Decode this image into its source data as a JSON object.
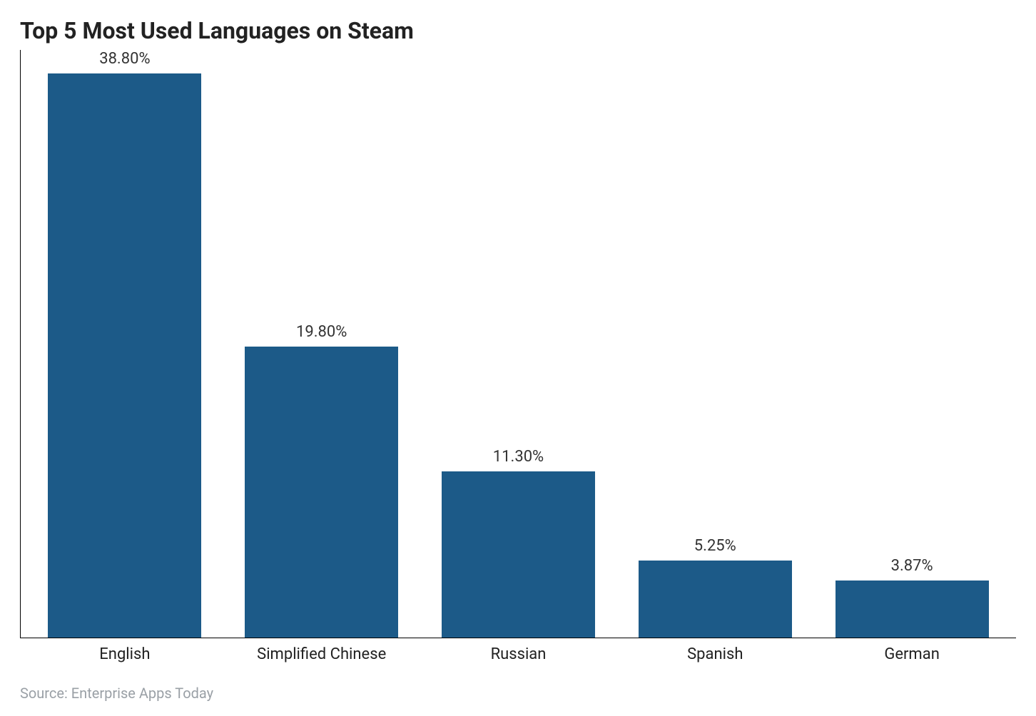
{
  "chart": {
    "type": "bar",
    "title": "Top 5 Most Used Languages on Steam",
    "title_fontsize": 32,
    "title_fontweight": 700,
    "title_color": "#222222",
    "categories": [
      "English",
      "Simplified Chinese",
      "Russian",
      "Spanish",
      "German"
    ],
    "values": [
      38.8,
      19.8,
      11.3,
      5.25,
      3.87
    ],
    "value_labels": [
      "38.80%",
      "19.80%",
      "11.30%",
      "5.25%",
      "3.87%"
    ],
    "bar_color": "#1c5a88",
    "bar_width": 0.78,
    "ylim": [
      0,
      40
    ],
    "background_color": "#ffffff",
    "axis_line_color": "#000000",
    "category_label_fontsize": 22,
    "category_label_color": "#222222",
    "value_label_fontsize": 22,
    "value_label_color": "#333333"
  },
  "source": {
    "text": "Source: Enterprise Apps Today",
    "fontsize": 20,
    "color": "#9aa0a6"
  }
}
